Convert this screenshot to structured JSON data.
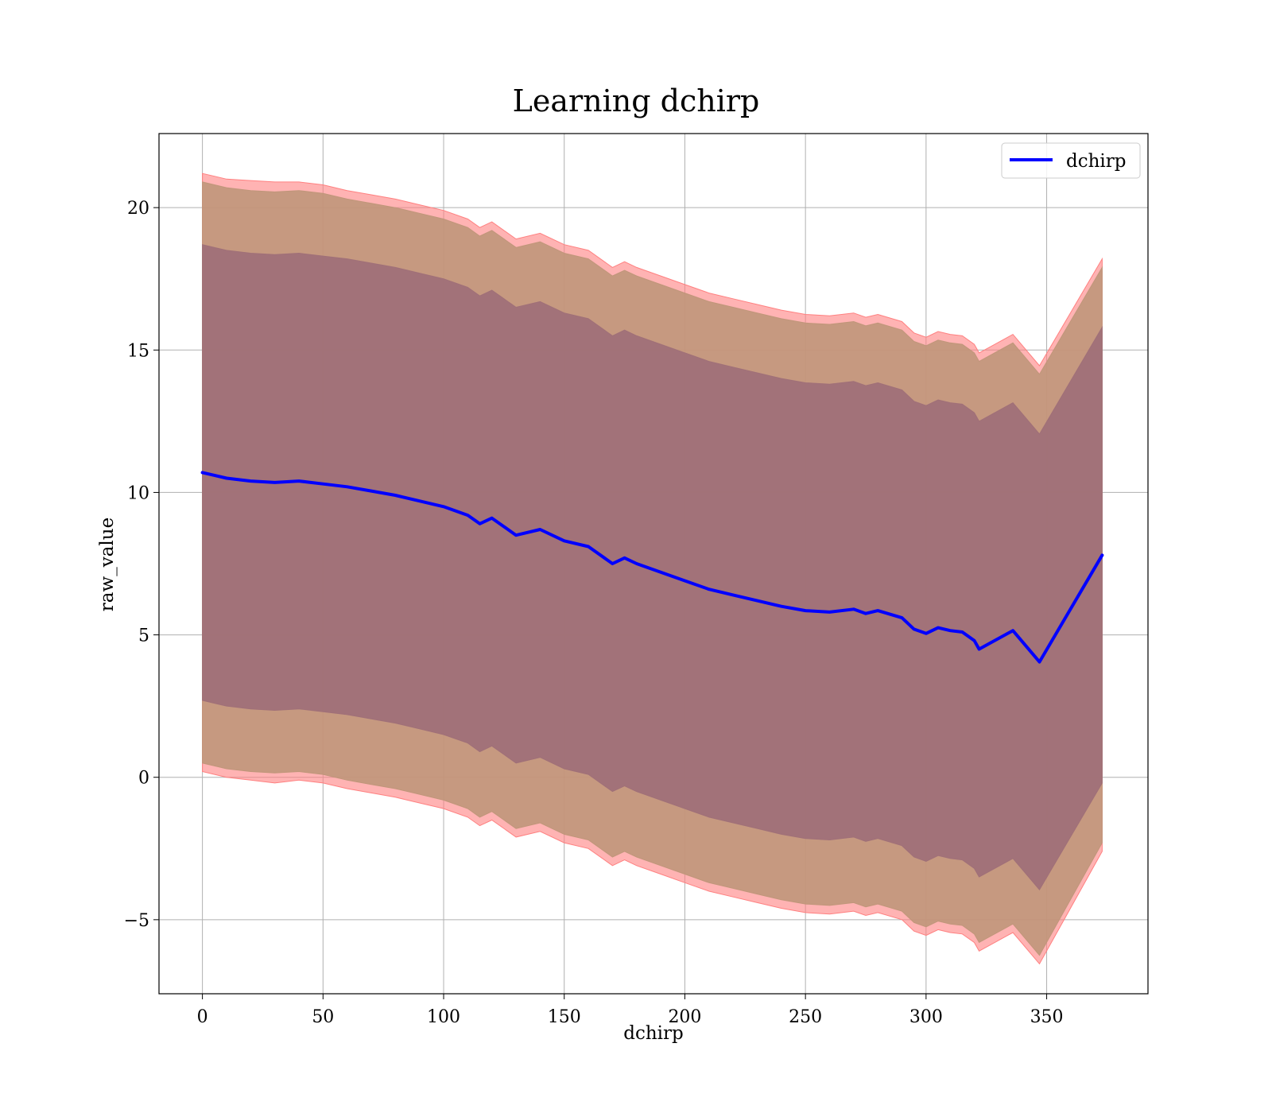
{
  "chart_data": {
    "type": "area",
    "title": "Learning dchirp",
    "xlabel": "dchirp",
    "ylabel": "raw_value",
    "xlim": [
      -18,
      392
    ],
    "ylim": [
      -7.6,
      22.6
    ],
    "x_ticks": [
      0,
      50,
      100,
      150,
      200,
      250,
      300,
      350
    ],
    "y_ticks": [
      -5,
      0,
      5,
      10,
      15,
      20
    ],
    "y_tick_labels": [
      "−5",
      "0",
      "5",
      "10",
      "15",
      "20"
    ],
    "grid": true,
    "legend_position": "top-right",
    "colors": {
      "line": "#0000ff",
      "band_outer": "#ff8080",
      "band_middle": "#c0967a",
      "band_inner": "#a07078",
      "axes": "#000000",
      "grid": "#b0b0b0"
    },
    "series": [
      {
        "name": "dchirp",
        "x": [
          0,
          5,
          10,
          20,
          30,
          40,
          50,
          60,
          70,
          80,
          90,
          100,
          110,
          115,
          120,
          130,
          140,
          150,
          160,
          170,
          175,
          180,
          190,
          200,
          210,
          220,
          230,
          240,
          250,
          260,
          270,
          275,
          280,
          290,
          295,
          300,
          305,
          310,
          315,
          320,
          322,
          336,
          347,
          373
        ],
        "values": [
          10.7,
          10.6,
          10.5,
          10.4,
          10.35,
          10.4,
          10.3,
          10.2,
          10.05,
          9.9,
          9.7,
          9.5,
          9.2,
          8.9,
          9.1,
          8.5,
          8.7,
          8.3,
          8.1,
          7.5,
          7.7,
          7.5,
          7.2,
          6.9,
          6.6,
          6.4,
          6.2,
          6.0,
          5.85,
          5.8,
          5.9,
          5.75,
          5.85,
          5.6,
          5.2,
          5.05,
          5.25,
          5.15,
          5.1,
          4.8,
          4.5,
          5.15,
          4.05,
          7.8
        ]
      }
    ],
    "bands": [
      {
        "upper": [
          21.2,
          21.1,
          21.0,
          20.95,
          20.9,
          20.9,
          20.8,
          20.6,
          20.45,
          20.3,
          20.1,
          19.9,
          19.6,
          19.3,
          19.5,
          18.9,
          19.1,
          18.7,
          18.5,
          17.9,
          18.1,
          17.9,
          17.6,
          17.3,
          17.0,
          16.8,
          16.6,
          16.4,
          16.25,
          16.2,
          16.3,
          16.15,
          16.25,
          16.0,
          15.6,
          15.45,
          15.65,
          15.55,
          15.5,
          15.2,
          14.9,
          15.55,
          14.45,
          18.2
        ],
        "lower": [
          0.2,
          0.1,
          0.0,
          -0.1,
          -0.2,
          -0.1,
          -0.2,
          -0.4,
          -0.55,
          -0.7,
          -0.9,
          -1.1,
          -1.4,
          -1.7,
          -1.5,
          -2.1,
          -1.9,
          -2.3,
          -2.5,
          -3.1,
          -2.9,
          -3.1,
          -3.4,
          -3.7,
          -4.0,
          -4.2,
          -4.4,
          -4.6,
          -4.75,
          -4.8,
          -4.7,
          -4.85,
          -4.75,
          -5.0,
          -5.4,
          -5.55,
          -5.35,
          -5.45,
          -5.5,
          -5.8,
          -6.1,
          -5.45,
          -6.55,
          -2.6
        ]
      },
      {
        "upper": [
          20.9,
          20.8,
          20.7,
          20.6,
          20.55,
          20.6,
          20.5,
          20.3,
          20.15,
          20.0,
          19.8,
          19.6,
          19.3,
          19.0,
          19.2,
          18.6,
          18.8,
          18.4,
          18.2,
          17.6,
          17.8,
          17.6,
          17.3,
          17.0,
          16.7,
          16.5,
          16.3,
          16.1,
          15.95,
          15.9,
          16.0,
          15.85,
          15.95,
          15.7,
          15.3,
          15.15,
          15.35,
          15.25,
          15.2,
          14.9,
          14.6,
          15.25,
          14.15,
          17.9
        ],
        "lower": [
          0.5,
          0.4,
          0.3,
          0.2,
          0.15,
          0.2,
          0.1,
          -0.1,
          -0.25,
          -0.4,
          -0.6,
          -0.8,
          -1.1,
          -1.4,
          -1.2,
          -1.8,
          -1.6,
          -2.0,
          -2.2,
          -2.8,
          -2.6,
          -2.8,
          -3.1,
          -3.4,
          -3.7,
          -3.9,
          -4.1,
          -4.3,
          -4.45,
          -4.5,
          -4.4,
          -4.55,
          -4.45,
          -4.7,
          -5.1,
          -5.25,
          -5.05,
          -5.15,
          -5.2,
          -5.5,
          -5.8,
          -5.15,
          -6.25,
          -2.3
        ]
      },
      {
        "upper": [
          18.7,
          18.6,
          18.5,
          18.4,
          18.35,
          18.4,
          18.3,
          18.2,
          18.05,
          17.9,
          17.7,
          17.5,
          17.2,
          16.9,
          17.1,
          16.5,
          16.7,
          16.3,
          16.1,
          15.5,
          15.7,
          15.5,
          15.2,
          14.9,
          14.6,
          14.4,
          14.2,
          14.0,
          13.85,
          13.8,
          13.9,
          13.75,
          13.85,
          13.6,
          13.2,
          13.05,
          13.25,
          13.15,
          13.1,
          12.8,
          12.5,
          13.15,
          12.05,
          15.8
        ],
        "lower": [
          2.7,
          2.6,
          2.5,
          2.4,
          2.35,
          2.4,
          2.3,
          2.2,
          2.05,
          1.9,
          1.7,
          1.5,
          1.2,
          0.9,
          1.1,
          0.5,
          0.7,
          0.3,
          0.1,
          -0.5,
          -0.3,
          -0.5,
          -0.8,
          -1.1,
          -1.4,
          -1.6,
          -1.8,
          -2.0,
          -2.15,
          -2.2,
          -2.1,
          -2.25,
          -2.15,
          -2.4,
          -2.8,
          -2.95,
          -2.75,
          -2.85,
          -2.9,
          -3.2,
          -3.5,
          -2.85,
          -3.95,
          -0.2
        ]
      }
    ]
  }
}
